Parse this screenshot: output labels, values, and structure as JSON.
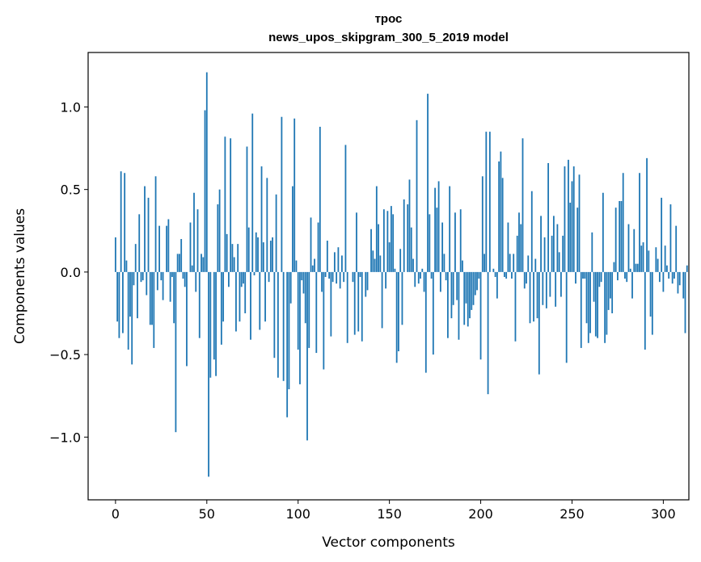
{
  "chart_data": {
    "type": "bar",
    "title_line1": "трос",
    "title_line2": "news_upos_skipgram_300_5_2019 model",
    "xlabel": "Vector components",
    "ylabel": "Components values",
    "xlim": [
      -15,
      314
    ],
    "ylim": [
      -1.38,
      1.33
    ],
    "xticks": [
      0,
      50,
      100,
      150,
      200,
      250,
      300
    ],
    "xtick_labels": [
      "0",
      "50",
      "100",
      "150",
      "200",
      "250",
      "300"
    ],
    "yticks": [
      -1.0,
      -0.5,
      0.0,
      0.5,
      1.0
    ],
    "ytick_labels": [
      "−1.0",
      "−0.5",
      "0.0",
      "0.5",
      "1.0"
    ],
    "bar_color": "#1f77b4",
    "values": [
      0.21,
      -0.3,
      -0.4,
      0.61,
      -0.37,
      0.6,
      0.07,
      -0.47,
      -0.27,
      -0.56,
      -0.08,
      0.17,
      -0.28,
      0.35,
      -0.06,
      -0.05,
      0.52,
      -0.14,
      0.45,
      -0.32,
      -0.32,
      -0.46,
      0.58,
      -0.11,
      0.28,
      -0.05,
      -0.17,
      0.0,
      0.28,
      0.32,
      -0.18,
      -0.03,
      -0.31,
      -0.97,
      0.11,
      0.11,
      0.2,
      -0.04,
      -0.09,
      -0.57,
      0.0,
      0.3,
      0.04,
      0.48,
      -0.12,
      0.38,
      -0.4,
      0.11,
      0.09,
      0.98,
      1.21,
      -1.24,
      -0.64,
      0.0,
      -0.53,
      -0.63,
      0.41,
      0.5,
      -0.44,
      -0.3,
      0.82,
      0.23,
      -0.09,
      0.81,
      0.17,
      0.09,
      -0.36,
      0.17,
      -0.3,
      -0.09,
      -0.07,
      -0.25,
      0.76,
      0.27,
      -0.41,
      0.96,
      -0.02,
      0.24,
      0.21,
      -0.35,
      0.64,
      0.18,
      -0.3,
      0.57,
      -0.06,
      0.19,
      0.21,
      -0.52,
      0.47,
      -0.64,
      0.0,
      0.94,
      -0.66,
      0.0,
      -0.88,
      -0.71,
      -0.19,
      0.52,
      0.93,
      0.07,
      -0.47,
      -0.68,
      -0.05,
      -0.13,
      -0.31,
      -1.02,
      -0.46,
      0.33,
      0.04,
      0.08,
      -0.49,
      0.3,
      0.88,
      -0.12,
      -0.59,
      -0.03,
      0.19,
      -0.04,
      -0.39,
      -0.06,
      0.12,
      -0.07,
      0.15,
      -0.1,
      0.1,
      -0.06,
      0.77,
      -0.43,
      0.0,
      0.0,
      -0.06,
      -0.38,
      0.36,
      -0.36,
      -0.03,
      -0.42,
      0.0,
      -0.15,
      -0.11,
      0.0,
      0.26,
      0.13,
      0.08,
      0.52,
      0.29,
      0.1,
      -0.34,
      0.38,
      -0.1,
      0.37,
      0.18,
      0.4,
      0.35,
      0.02,
      -0.55,
      -0.48,
      0.14,
      -0.32,
      0.44,
      0.0,
      0.41,
      0.56,
      0.27,
      0.08,
      -0.09,
      0.92,
      -0.07,
      -0.04,
      0.02,
      -0.12,
      -0.61,
      1.08,
      0.35,
      -0.04,
      -0.5,
      0.51,
      0.39,
      0.55,
      -0.12,
      0.3,
      0.11,
      -0.05,
      -0.4,
      0.52,
      -0.28,
      -0.2,
      0.36,
      -0.17,
      -0.41,
      0.38,
      0.07,
      -0.32,
      -0.19,
      -0.33,
      -0.28,
      -0.23,
      -0.2,
      -0.14,
      -0.11,
      -0.04,
      -0.53,
      0.58,
      0.11,
      0.85,
      -0.74,
      0.85,
      0.0,
      0.02,
      -0.03,
      -0.16,
      0.67,
      0.73,
      0.57,
      -0.03,
      -0.04,
      0.3,
      0.11,
      -0.04,
      0.11,
      -0.42,
      0.22,
      0.36,
      0.29,
      0.81,
      -0.1,
      -0.07,
      0.1,
      -0.31,
      0.49,
      -0.3,
      0.08,
      -0.28,
      -0.62,
      0.34,
      -0.2,
      0.21,
      -0.22,
      0.66,
      -0.15,
      0.22,
      0.34,
      -0.21,
      0.29,
      0.12,
      -0.15,
      0.22,
      0.64,
      -0.55,
      0.68,
      0.42,
      0.55,
      0.64,
      -0.07,
      0.39,
      0.59,
      -0.46,
      -0.04,
      -0.04,
      -0.31,
      -0.43,
      -0.37,
      0.24,
      -0.18,
      -0.39,
      -0.4,
      -0.09,
      -0.06,
      0.48,
      -0.43,
      -0.38,
      -0.23,
      -0.16,
      -0.25,
      0.06,
      0.39,
      -0.05,
      0.43,
      0.43,
      0.6,
      -0.04,
      -0.06,
      0.29,
      0.02,
      -0.16,
      0.26,
      0.05,
      0.05,
      0.6,
      0.16,
      0.18,
      -0.47,
      0.69,
      0.13,
      -0.27,
      -0.38,
      0.0,
      0.15,
      0.08,
      -0.06,
      0.45,
      -0.12,
      0.16,
      0.04,
      -0.04,
      0.41,
      -0.07,
      -0.04,
      0.28,
      -0.13,
      -0.08,
      0.0,
      -0.16,
      -0.37,
      0.04
    ]
  }
}
